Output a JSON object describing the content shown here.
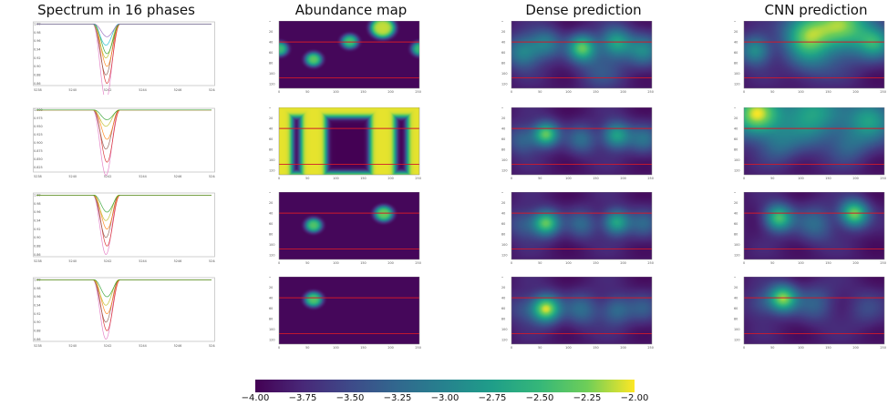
{
  "titles": {
    "spectrum": "Spectrum in 16 phases",
    "abundance": "Abundance map",
    "dense": "Dense prediction",
    "cnn": "CNN prediction"
  },
  "colorbar": {
    "min": -4.0,
    "max": -2.0,
    "colormap": "viridis",
    "ticks": [
      "−4.00",
      "−3.75",
      "−3.50",
      "−3.25",
      "−3.00",
      "−2.75",
      "−2.50",
      "−2.25",
      "−2.00"
    ]
  },
  "chart_data": [
    {
      "type": "line",
      "title": "Spectrum in 16 phases",
      "rows": [
        {
          "yticks": [
            "1.00",
            "0.98",
            "0.96",
            "0.94",
            "0.92",
            "0.90",
            "0.88",
            "0.86"
          ],
          "ylim": [
            0.855,
            1.005
          ],
          "depths": [
            0.82,
            0.86,
            0.88,
            0.9,
            0.92,
            0.93,
            0.95,
            0.97
          ]
        },
        {
          "yticks": [
            "1.000",
            "0.975",
            "0.950",
            "0.925",
            "0.900",
            "0.875",
            "0.850",
            "0.825"
          ],
          "ylim": [
            0.81,
            1.005
          ],
          "depths": [
            0.8,
            0.84,
            0.88,
            0.91,
            0.95,
            0.97
          ]
        },
        {
          "yticks": [
            "1.00",
            "0.98",
            "0.96",
            "0.94",
            "0.92",
            "0.90",
            "0.88",
            "0.86"
          ],
          "ylim": [
            0.855,
            1.005
          ],
          "depths": [
            0.86,
            0.88,
            0.9,
            0.92,
            0.94,
            0.96
          ]
        },
        {
          "yticks": [
            "1.00",
            "0.98",
            "0.96",
            "0.94",
            "0.92",
            "0.90",
            "0.88",
            "0.86"
          ],
          "ylim": [
            0.855,
            1.005
          ],
          "depths": [
            0.86,
            0.88,
            0.9,
            0.92,
            0.94,
            0.96
          ]
        }
      ],
      "xticks": [
        "5238",
        "5240",
        "5242",
        "5244",
        "5246",
        "5248"
      ],
      "xlim": [
        5238,
        5248
      ],
      "line_center": 5242,
      "series_colors": [
        "#e377c2",
        "#d62728",
        "#8c564b",
        "#ff7f0e",
        "#bcbd22",
        "#2ca02c",
        "#17becf",
        "#9467bd"
      ]
    },
    {
      "type": "heatmap",
      "title": "Abundance map",
      "xticks": [
        "0",
        "50",
        "100",
        "150",
        "200",
        "250"
      ],
      "yticks": [
        "0",
        "20",
        "40",
        "60",
        "80",
        "100",
        "120"
      ],
      "red_lines_y": [
        40,
        108
      ],
      "rows": [
        {
          "blobs": [
            [
              0,
              52,
              0.78,
              14
            ],
            [
              62,
              72,
              0.84,
              14
            ],
            [
              128,
              38,
              0.8,
              14
            ],
            [
              188,
              12,
              0.95,
              22
            ],
            [
              256,
              52,
              0.78,
              14
            ]
          ],
          "mode": "blobs"
        },
        {
          "mode": "bands",
          "bands_x": [
            0,
            62,
            188,
            256
          ],
          "band_width": 24,
          "top_band": 18
        },
        {
          "blobs": [
            [
              62,
              62,
              0.82,
              14
            ],
            [
              190,
              40,
              0.86,
              16
            ]
          ],
          "mode": "blobs"
        },
        {
          "blobs": [
            [
              62,
              42,
              0.82,
              15
            ]
          ],
          "mode": "blobs"
        }
      ]
    },
    {
      "type": "heatmap",
      "title": "Dense prediction",
      "xticks": [
        "0",
        "50",
        "100",
        "150",
        "200",
        "250"
      ],
      "yticks": [
        "0",
        "20",
        "40",
        "60",
        "80",
        "100",
        "120"
      ],
      "red_lines_y": [
        40,
        108
      ],
      "rows": [
        {
          "blobs": [
            [
              20,
              58,
              0.45,
              22
            ],
            [
              62,
              42,
              0.38,
              20
            ],
            [
              128,
              50,
              0.7,
              18
            ],
            [
              190,
              40,
              0.55,
              20
            ],
            [
              240,
              55,
              0.4,
              22
            ],
            [
              160,
              90,
              0.2,
              30
            ]
          ]
        },
        {
          "blobs": [
            [
              62,
              50,
              0.75,
              16
            ],
            [
              190,
              52,
              0.58,
              18
            ],
            [
              20,
              60,
              0.3,
              20
            ],
            [
              128,
              60,
              0.3,
              20
            ],
            [
              240,
              60,
              0.3,
              20
            ]
          ]
        },
        {
          "blobs": [
            [
              62,
              58,
              0.75,
              17
            ],
            [
              190,
              56,
              0.6,
              17
            ],
            [
              20,
              60,
              0.25,
              20
            ],
            [
              128,
              60,
              0.28,
              20
            ],
            [
              240,
              60,
              0.25,
              20
            ]
          ]
        },
        {
          "blobs": [
            [
              62,
              60,
              0.88,
              18
            ],
            [
              128,
              62,
              0.3,
              22
            ],
            [
              190,
              62,
              0.32,
              20
            ],
            [
              20,
              60,
              0.2,
              20
            ],
            [
              240,
              60,
              0.2,
              20
            ]
          ]
        }
      ]
    },
    {
      "type": "heatmap",
      "title": "CNN prediction",
      "xticks": [
        "0",
        "50",
        "100",
        "150",
        "200",
        "250"
      ],
      "yticks": [
        "0",
        "20",
        "40",
        "60",
        "80",
        "100",
        "120"
      ],
      "red_lines_y": [
        40,
        108
      ],
      "rows": [
        {
          "blobs": [
            [
              180,
              8,
              0.75,
              40
            ],
            [
              110,
              20,
              0.6,
              30
            ],
            [
              20,
              55,
              0.5,
              20
            ],
            [
              240,
              40,
              0.45,
              22
            ],
            [
              120,
              70,
              0.25,
              30
            ]
          ]
        },
        {
          "blobs": [
            [
              20,
              12,
              0.85,
              30
            ],
            [
              120,
              10,
              0.6,
              40
            ],
            [
              230,
              20,
              0.55,
              30
            ],
            [
              62,
              70,
              0.25,
              25
            ],
            [
              190,
              70,
              0.25,
              25
            ]
          ]
        },
        {
          "blobs": [
            [
              62,
              48,
              0.72,
              18
            ],
            [
              200,
              40,
              0.8,
              18
            ],
            [
              130,
              60,
              0.3,
              25
            ]
          ]
        },
        {
          "blobs": [
            [
              70,
              40,
              0.8,
              18
            ],
            [
              130,
              50,
              0.25,
              25
            ],
            [
              30,
              50,
              0.2,
              20
            ],
            [
              220,
              60,
              0.15,
              25
            ]
          ]
        }
      ]
    }
  ]
}
